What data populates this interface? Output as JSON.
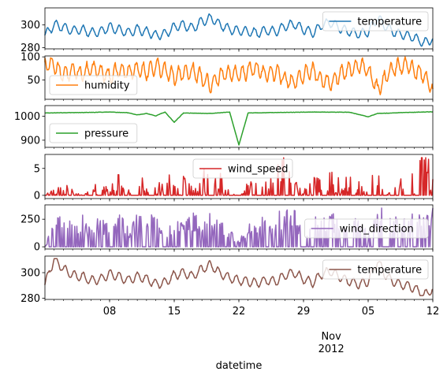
{
  "chart_data": {
    "type": "line",
    "xlabel": "datetime",
    "x_range": [
      "2012-10-01",
      "2012-11-12"
    ],
    "x_ticks": [
      {
        "date": "2012-10-08",
        "label": "08"
      },
      {
        "date": "2012-10-15",
        "label": "15"
      },
      {
        "date": "2012-10-22",
        "label": "22"
      },
      {
        "date": "2012-10-29",
        "label": "29"
      },
      {
        "date": "2012-11-05",
        "label": "05"
      },
      {
        "date": "2012-11-12",
        "label": "12"
      }
    ],
    "x_major_label": {
      "date": "2012-11-01",
      "month": "Nov",
      "year": "2012"
    },
    "subplots": [
      {
        "name": "temperature",
        "color": "#1f77b4",
        "legend": "upper right",
        "ylim": [
          279,
          315
        ],
        "yticks": [
          280,
          300
        ],
        "baseline": 291,
        "min": 281,
        "max": 314,
        "points": [
          [
            "2012-10-01",
            291
          ],
          [
            "2012-10-02",
            300
          ],
          [
            "2012-10-03",
            298
          ],
          [
            "2012-10-04",
            295
          ],
          [
            "2012-10-05",
            296
          ],
          [
            "2012-10-06",
            293
          ],
          [
            "2012-10-07",
            294
          ],
          [
            "2012-10-08",
            298
          ],
          [
            "2012-10-09",
            296
          ],
          [
            "2012-10-10",
            293
          ],
          [
            "2012-10-11",
            296
          ],
          [
            "2012-10-12",
            294
          ],
          [
            "2012-10-13",
            291
          ],
          [
            "2012-10-14",
            292
          ],
          [
            "2012-10-15",
            298
          ],
          [
            "2012-10-16",
            300
          ],
          [
            "2012-10-17",
            297
          ],
          [
            "2012-10-18",
            303
          ],
          [
            "2012-10-19",
            306
          ],
          [
            "2012-10-20",
            300
          ],
          [
            "2012-10-21",
            296
          ],
          [
            "2012-10-22",
            295
          ],
          [
            "2012-10-23",
            294
          ],
          [
            "2012-10-24",
            293
          ],
          [
            "2012-10-25",
            295
          ],
          [
            "2012-10-26",
            294
          ],
          [
            "2012-10-27",
            299
          ],
          [
            "2012-10-28",
            301
          ],
          [
            "2012-10-29",
            296
          ],
          [
            "2012-10-30",
            293
          ],
          [
            "2012-10-31",
            300
          ],
          [
            "2012-11-01",
            302
          ],
          [
            "2012-11-02",
            297
          ],
          [
            "2012-11-03",
            294
          ],
          [
            "2012-11-04",
            292
          ],
          [
            "2012-11-05",
            294
          ],
          [
            "2012-11-06",
            306
          ],
          [
            "2012-11-07",
            298
          ],
          [
            "2012-11-08",
            293
          ],
          [
            "2012-11-09",
            291
          ],
          [
            "2012-11-10",
            289
          ],
          [
            "2012-11-11",
            284
          ],
          [
            "2012-11-12",
            288
          ]
        ]
      },
      {
        "name": "humidity",
        "color": "#ff7f0e",
        "legend": "lower left",
        "ylim": [
          8,
          102
        ],
        "yticks": [
          50,
          100
        ],
        "baseline": 88,
        "min": 10,
        "max": 100,
        "points": [
          [
            "2012-10-01",
            88
          ],
          [
            "2012-10-02",
            82
          ],
          [
            "2012-10-03",
            60
          ],
          [
            "2012-10-04",
            70
          ],
          [
            "2012-10-05",
            62
          ],
          [
            "2012-10-06",
            75
          ],
          [
            "2012-10-07",
            68
          ],
          [
            "2012-10-08",
            58
          ],
          [
            "2012-10-09",
            72
          ],
          [
            "2012-10-10",
            66
          ],
          [
            "2012-10-11",
            74
          ],
          [
            "2012-10-12",
            68
          ],
          [
            "2012-10-13",
            80
          ],
          [
            "2012-10-14",
            72
          ],
          [
            "2012-10-15",
            58
          ],
          [
            "2012-10-16",
            64
          ],
          [
            "2012-10-17",
            70
          ],
          [
            "2012-10-18",
            55
          ],
          [
            "2012-10-19",
            40
          ],
          [
            "2012-10-20",
            60
          ],
          [
            "2012-10-21",
            66
          ],
          [
            "2012-10-22",
            62
          ],
          [
            "2012-10-23",
            70
          ],
          [
            "2012-10-24",
            75
          ],
          [
            "2012-10-25",
            60
          ],
          [
            "2012-10-26",
            68
          ],
          [
            "2012-10-27",
            52
          ],
          [
            "2012-10-28",
            45
          ],
          [
            "2012-10-29",
            62
          ],
          [
            "2012-10-30",
            70
          ],
          [
            "2012-10-31",
            50
          ],
          [
            "2012-11-01",
            44
          ],
          [
            "2012-11-02",
            62
          ],
          [
            "2012-11-03",
            74
          ],
          [
            "2012-11-04",
            80
          ],
          [
            "2012-11-05",
            72
          ],
          [
            "2012-11-06",
            28
          ],
          [
            "2012-11-07",
            60
          ],
          [
            "2012-11-08",
            78
          ],
          [
            "2012-11-09",
            84
          ],
          [
            "2012-11-10",
            72
          ],
          [
            "2012-11-11",
            60
          ],
          [
            "2012-11-12",
            30
          ]
        ]
      },
      {
        "name": "pressure",
        "color": "#2ca02c",
        "legend": "lower left",
        "ylim": [
          870,
          1045
        ],
        "yticks": [
          900,
          1000
        ],
        "baseline": 1014,
        "min": 880,
        "max": 1024,
        "points": [
          [
            "2012-10-01",
            1014
          ],
          [
            "2012-10-05",
            1016
          ],
          [
            "2012-10-08",
            1018
          ],
          [
            "2012-10-10",
            1015
          ],
          [
            "2012-10-11",
            1006
          ],
          [
            "2012-10-12",
            1012
          ],
          [
            "2012-10-13",
            1002
          ],
          [
            "2012-10-14",
            1018
          ],
          [
            "2012-10-15",
            975
          ],
          [
            "2012-10-16",
            1014
          ],
          [
            "2012-10-19",
            1012
          ],
          [
            "2012-10-21",
            1018
          ],
          [
            "2012-10-22",
            880
          ],
          [
            "2012-10-23",
            1014
          ],
          [
            "2012-10-26",
            1016
          ],
          [
            "2012-10-30",
            1018
          ],
          [
            "2012-11-03",
            1017
          ],
          [
            "2012-11-05",
            998
          ],
          [
            "2012-11-06",
            1012
          ],
          [
            "2012-11-09",
            1016
          ],
          [
            "2012-11-12",
            1019
          ]
        ]
      },
      {
        "name": "wind_speed",
        "color": "#d62728",
        "legend": "upper center",
        "ylim": [
          -0.6,
          7.6
        ],
        "yticks": [
          0,
          5
        ],
        "baseline": 0,
        "min": 0,
        "max": 7,
        "points": [
          [
            "2012-10-01",
            0
          ],
          [
            "2012-10-03",
            2
          ],
          [
            "2012-10-05",
            0
          ],
          [
            "2012-10-07",
            2
          ],
          [
            "2012-10-08",
            1
          ],
          [
            "2012-10-09",
            3
          ],
          [
            "2012-10-10",
            1
          ],
          [
            "2012-10-11",
            2
          ],
          [
            "2012-10-12",
            3
          ],
          [
            "2012-10-13",
            1
          ],
          [
            "2012-10-14",
            4
          ],
          [
            "2012-10-15",
            2
          ],
          [
            "2012-10-16",
            3
          ],
          [
            "2012-10-17",
            1
          ],
          [
            "2012-10-18",
            4
          ],
          [
            "2012-10-19",
            2
          ],
          [
            "2012-10-20",
            3
          ],
          [
            "2012-10-21",
            1
          ],
          [
            "2012-10-22",
            0
          ],
          [
            "2012-10-23",
            2
          ],
          [
            "2012-10-24",
            3
          ],
          [
            "2012-10-25",
            2
          ],
          [
            "2012-10-26",
            4
          ],
          [
            "2012-10-27",
            7
          ],
          [
            "2012-10-28",
            2
          ],
          [
            "2012-10-29",
            1
          ],
          [
            "2012-10-30",
            3
          ],
          [
            "2012-10-31",
            2
          ],
          [
            "2012-11-01",
            4
          ],
          [
            "2012-11-02",
            2
          ],
          [
            "2012-11-03",
            3
          ],
          [
            "2012-11-04",
            2
          ],
          [
            "2012-11-05",
            1
          ],
          [
            "2012-11-06",
            5
          ],
          [
            "2012-11-07",
            0
          ],
          [
            "2012-11-08",
            2
          ],
          [
            "2012-11-09",
            3
          ],
          [
            "2012-11-10",
            4
          ],
          [
            "2012-11-11",
            7
          ],
          [
            "2012-11-12",
            3
          ]
        ]
      },
      {
        "name": "wind_direction",
        "color": "#9467bd",
        "legend": "center right",
        "ylim": [
          -20,
          380
        ],
        "yticks": [
          0,
          250
        ],
        "baseline": 0,
        "min": 0,
        "max": 360,
        "points": [
          [
            "2012-10-01",
            0
          ],
          [
            "2012-10-02",
            250
          ],
          [
            "2012-10-03",
            340
          ],
          [
            "2012-10-04",
            200
          ],
          [
            "2012-10-05",
            330
          ],
          [
            "2012-10-06",
            150
          ],
          [
            "2012-10-07",
            300
          ],
          [
            "2012-10-08",
            220
          ],
          [
            "2012-10-09",
            330
          ],
          [
            "2012-10-10",
            180
          ],
          [
            "2012-10-11",
            340
          ],
          [
            "2012-10-12",
            260
          ],
          [
            "2012-10-13",
            320
          ],
          [
            "2012-10-14",
            150
          ],
          [
            "2012-10-15",
            310
          ],
          [
            "2012-10-16",
            200
          ],
          [
            "2012-10-17",
            340
          ],
          [
            "2012-10-18",
            260
          ],
          [
            "2012-10-19",
            320
          ],
          [
            "2012-10-20",
            240
          ],
          [
            "2012-10-21",
            160
          ],
          [
            "2012-10-22",
            60
          ],
          [
            "2012-10-23",
            200
          ],
          [
            "2012-10-24",
            300
          ],
          [
            "2012-10-25",
            250
          ],
          [
            "2012-10-26",
            320
          ],
          [
            "2012-10-27",
            360
          ],
          [
            "2012-10-28",
            350
          ],
          [
            "2012-10-29",
            200
          ],
          [
            "2012-10-30",
            300
          ],
          [
            "2012-10-31",
            250
          ],
          [
            "2012-11-01",
            340
          ],
          [
            "2012-11-02",
            230
          ],
          [
            "2012-11-03",
            320
          ],
          [
            "2012-11-04",
            280
          ],
          [
            "2012-11-05",
            120
          ],
          [
            "2012-11-06",
            350
          ],
          [
            "2012-11-07",
            360
          ],
          [
            "2012-11-08",
            300
          ],
          [
            "2012-11-09",
            250
          ],
          [
            "2012-11-10",
            330
          ],
          [
            "2012-11-11",
            280
          ],
          [
            "2012-11-12",
            350
          ]
        ]
      },
      {
        "name": "temperature",
        "color": "#8c564b",
        "legend": "upper right",
        "ylim": [
          279,
          313
        ],
        "yticks": [
          280,
          300
        ],
        "baseline": 291,
        "min": 282,
        "max": 311,
        "points": [
          [
            "2012-10-01",
            291
          ],
          [
            "2012-10-02",
            311
          ],
          [
            "2012-10-03",
            303
          ],
          [
            "2012-10-04",
            298
          ],
          [
            "2012-10-05",
            297
          ],
          [
            "2012-10-06",
            294
          ],
          [
            "2012-10-07",
            295
          ],
          [
            "2012-10-08",
            299
          ],
          [
            "2012-10-09",
            297
          ],
          [
            "2012-10-10",
            294
          ],
          [
            "2012-10-11",
            297
          ],
          [
            "2012-10-12",
            295
          ],
          [
            "2012-10-13",
            291
          ],
          [
            "2012-10-14",
            292
          ],
          [
            "2012-10-15",
            298
          ],
          [
            "2012-10-16",
            300
          ],
          [
            "2012-10-17",
            297
          ],
          [
            "2012-10-18",
            303
          ],
          [
            "2012-10-19",
            306
          ],
          [
            "2012-10-20",
            299
          ],
          [
            "2012-10-21",
            296
          ],
          [
            "2012-10-22",
            294
          ],
          [
            "2012-10-23",
            293
          ],
          [
            "2012-10-24",
            292
          ],
          [
            "2012-10-25",
            294
          ],
          [
            "2012-10-26",
            293
          ],
          [
            "2012-10-27",
            298
          ],
          [
            "2012-10-28",
            300
          ],
          [
            "2012-10-29",
            295
          ],
          [
            "2012-10-30",
            292
          ],
          [
            "2012-10-31",
            299
          ],
          [
            "2012-11-01",
            301
          ],
          [
            "2012-11-02",
            296
          ],
          [
            "2012-11-03",
            293
          ],
          [
            "2012-11-04",
            291
          ],
          [
            "2012-11-05",
            293
          ],
          [
            "2012-11-06",
            309
          ],
          [
            "2012-11-07",
            297
          ],
          [
            "2012-11-08",
            292
          ],
          [
            "2012-11-09",
            290
          ],
          [
            "2012-11-10",
            288
          ],
          [
            "2012-11-11",
            282
          ],
          [
            "2012-11-12",
            287
          ]
        ]
      }
    ]
  }
}
